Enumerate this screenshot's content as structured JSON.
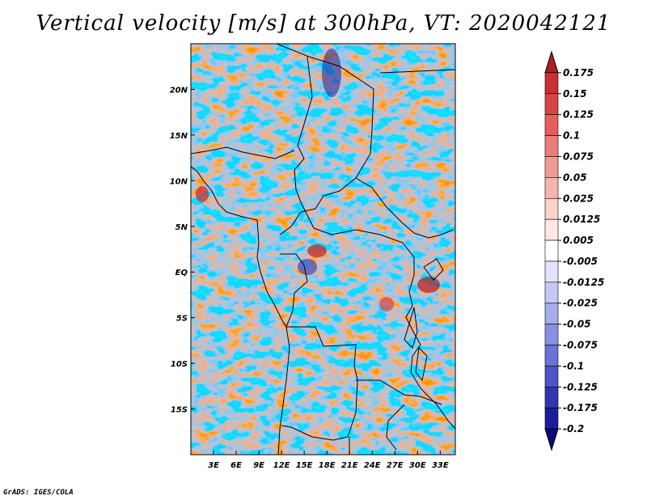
{
  "title": "Vertical velocity [m/s] at 300hPa, VT: 2020042121",
  "credit": "GrADS: IGES/COLA",
  "chart_data": {
    "type": "heatmap",
    "title": "Vertical velocity [m/s] at 300hPa, VT: 2020042121",
    "variable": "Vertical velocity",
    "units": "m/s",
    "level": "300hPa",
    "valid_time": "2020042121",
    "lon_range": [
      0,
      35
    ],
    "lat_range": [
      -20,
      25
    ],
    "x_ticks": [
      {
        "value": 3,
        "label": "3E"
      },
      {
        "value": 6,
        "label": "6E"
      },
      {
        "value": 9,
        "label": "9E"
      },
      {
        "value": 12,
        "label": "12E"
      },
      {
        "value": 15,
        "label": "15E"
      },
      {
        "value": 18,
        "label": "18E"
      },
      {
        "value": 21,
        "label": "21E"
      },
      {
        "value": 24,
        "label": "24E"
      },
      {
        "value": 27,
        "label": "27E"
      },
      {
        "value": 30,
        "label": "30E"
      },
      {
        "value": 33,
        "label": "33E"
      }
    ],
    "y_ticks": [
      {
        "value": 20,
        "label": "20N"
      },
      {
        "value": 15,
        "label": "15N"
      },
      {
        "value": 10,
        "label": "10N"
      },
      {
        "value": 5,
        "label": "5N"
      },
      {
        "value": 0,
        "label": "EQ"
      },
      {
        "value": -5,
        "label": "5S"
      },
      {
        "value": -10,
        "label": "10S"
      },
      {
        "value": -15,
        "label": "15S"
      }
    ],
    "colorbar": {
      "levels": [
        "0.175",
        "0.15",
        "0.125",
        "0.1",
        "0.075",
        "0.05",
        "0.025",
        "0.0125",
        "0.005",
        "-0.005",
        "-0.0125",
        "-0.025",
        "-0.05",
        "-0.075",
        "-0.1",
        "-0.125",
        "-0.175",
        "-0.2"
      ],
      "colors": [
        "#b01c20",
        "#c83030",
        "#d84545",
        "#e45e5e",
        "#ec7c78",
        "#f19a94",
        "#f5b6b0",
        "#f9d2cc",
        "#fde8e4",
        "#ffffff",
        "#e2e4fb",
        "#c4c8f4",
        "#a6aceb",
        "#8890e2",
        "#6a72d6",
        "#4c54c6",
        "#3236b0",
        "#1a1e96",
        "#0e0a7a"
      ]
    }
  }
}
